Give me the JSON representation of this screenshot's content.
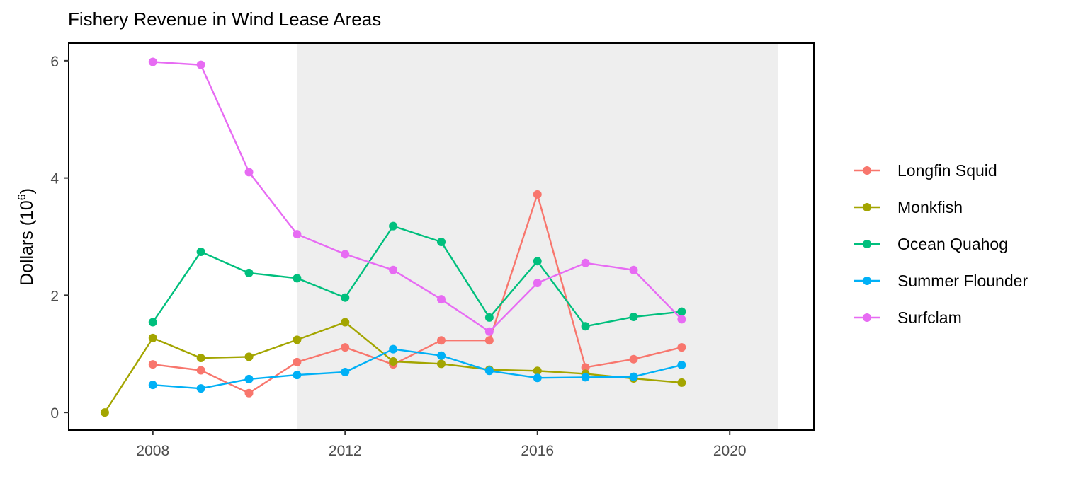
{
  "chart_data": {
    "type": "line",
    "title": "Fishery Revenue in Wind Lease Areas",
    "xlabel": "",
    "ylabel": "Dollars (10",
    "ylabel_superscript": "6",
    "ylabel_suffix": ")",
    "xlim": [
      2006.25,
      2021.75
    ],
    "ylim": [
      -0.3,
      6.3
    ],
    "x_ticks": [
      2008,
      2012,
      2016,
      2020
    ],
    "y_ticks": [
      0,
      2,
      4,
      6
    ],
    "shaded_region": {
      "x_start": 2011,
      "x_end": 2021,
      "color": "#eeeeee"
    },
    "grid": false,
    "legend_position": "right",
    "series": [
      {
        "name": "Longfin Squid",
        "color": "#F8766D",
        "x": [
          2008,
          2009,
          2010,
          2011,
          2012,
          2013,
          2014,
          2015,
          2016,
          2017,
          2018,
          2019
        ],
        "y": [
          0.82,
          0.72,
          0.33,
          0.86,
          1.11,
          0.82,
          1.23,
          1.23,
          3.72,
          0.77,
          0.91,
          1.11
        ]
      },
      {
        "name": "Monkfish",
        "color": "#A3A500",
        "x": [
          2007,
          2008,
          2009,
          2010,
          2011,
          2012,
          2013,
          2014,
          2015,
          2016,
          2017,
          2018,
          2019
        ],
        "y": [
          0.0,
          1.27,
          0.93,
          0.95,
          1.24,
          1.54,
          0.87,
          0.83,
          0.73,
          0.71,
          0.66,
          0.58,
          0.51
        ]
      },
      {
        "name": "Ocean Quahog",
        "color": "#00BF7D",
        "x": [
          2008,
          2009,
          2010,
          2011,
          2012,
          2013,
          2014,
          2015,
          2016,
          2017,
          2018,
          2019
        ],
        "y": [
          1.54,
          2.74,
          2.38,
          2.29,
          1.96,
          3.18,
          2.91,
          1.62,
          2.58,
          1.47,
          1.63,
          1.72
        ]
      },
      {
        "name": "Summer Flounder",
        "color": "#00B0F6",
        "x": [
          2008,
          2009,
          2010,
          2011,
          2012,
          2013,
          2014,
          2015,
          2016,
          2017,
          2018,
          2019
        ],
        "y": [
          0.47,
          0.41,
          0.57,
          0.64,
          0.69,
          1.08,
          0.97,
          0.71,
          0.59,
          0.6,
          0.61,
          0.81
        ]
      },
      {
        "name": "Surfclam",
        "color": "#E76BF3",
        "x": [
          2008,
          2009,
          2010,
          2011,
          2012,
          2013,
          2014,
          2015,
          2016,
          2017,
          2018,
          2019
        ],
        "y": [
          5.98,
          5.93,
          4.1,
          3.04,
          2.7,
          2.43,
          1.93,
          1.38,
          2.21,
          2.55,
          2.43,
          1.59
        ]
      }
    ]
  }
}
